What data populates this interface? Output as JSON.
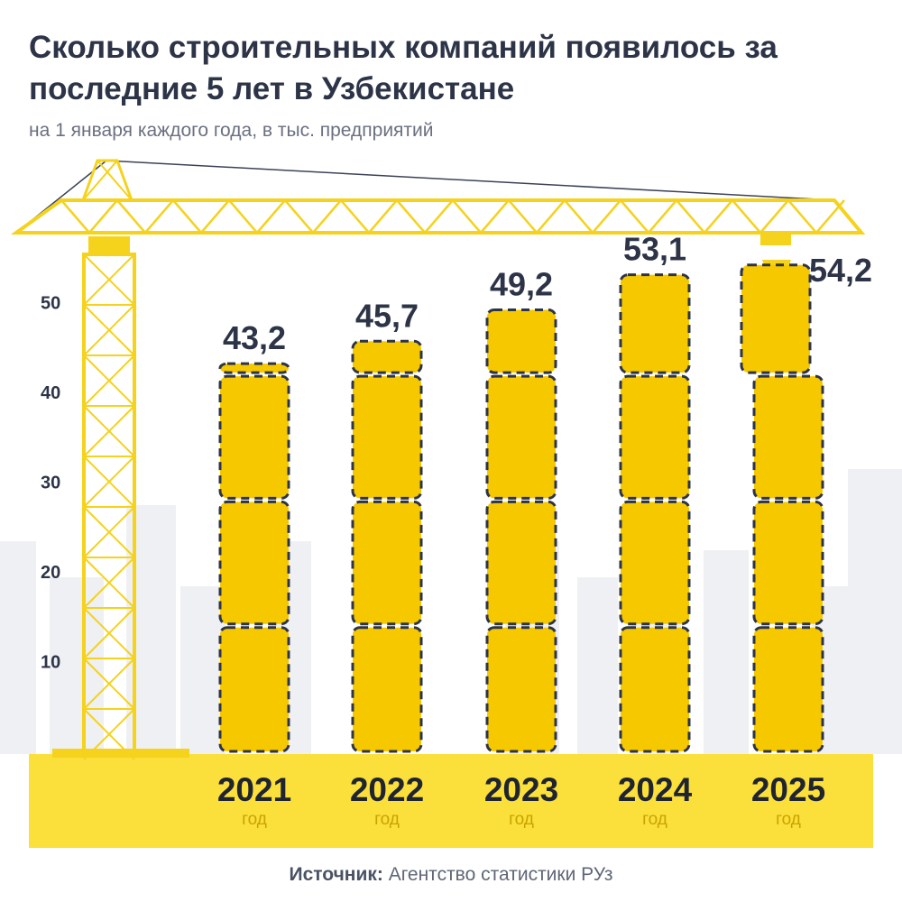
{
  "header": {
    "title": "Сколько строительных компаний появилось за последние 5 лет в Узбекистане",
    "subtitle": "на 1 января каждого года, в тыс. предприятий"
  },
  "footer": {
    "source_label": "Источник:",
    "source_text": "Агентство статистики РУз"
  },
  "colors": {
    "block": "#f6c800",
    "ground": "#fbdf3a",
    "crane": "#f5d21c",
    "text": "#2d3447"
  },
  "chart_data": {
    "type": "bar",
    "categories": [
      "2021",
      "2022",
      "2023",
      "2024",
      "2025"
    ],
    "category_sublabel": "год",
    "values": [
      43.2,
      45.7,
      49.2,
      53.1,
      54.2
    ],
    "value_labels": [
      "43,2",
      "45,7",
      "49,2",
      "53,1",
      "54,2"
    ],
    "yticks": [
      "10",
      "20",
      "30",
      "40",
      "50"
    ],
    "ylim": [
      0,
      55
    ],
    "title": "Сколько строительных компаний появилось за последние 5 лет в Узбекистане",
    "xlabel": "",
    "ylabel": ""
  }
}
